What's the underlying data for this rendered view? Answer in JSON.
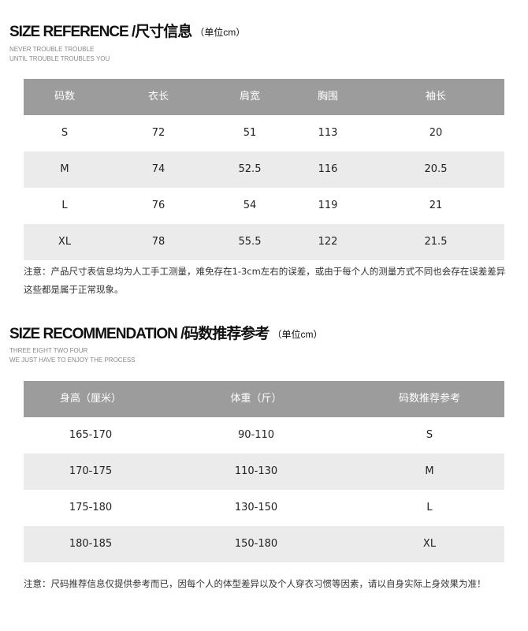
{
  "reference": {
    "title": "SIZE REFERENCE /尺寸信息",
    "unit": "（单位cm）",
    "sub1": "NEVER TROUBLE TROUBLE",
    "sub2": "UNTIL TROUBLE TROUBLES YOU",
    "headers": [
      "码数",
      "衣长",
      "肩宽",
      "胸围",
      "袖长"
    ],
    "rows": [
      [
        "S",
        "72",
        "51",
        "113",
        "20"
      ],
      [
        "M",
        "74",
        "52.5",
        "116",
        "20.5"
      ],
      [
        "L",
        "76",
        "54",
        "119",
        "21"
      ],
      [
        "XL",
        "78",
        "55.5",
        "122",
        "21.5"
      ]
    ],
    "note": "注意：产品尺寸表信息均为人工手工测量，难免存在1-3cm左右的误差，或由于每个人的测量方式不同也会存在误差差异这些都是属于正常现象。"
  },
  "recommendation": {
    "title": "SIZE RECOMMENDATION /码数推荐参考",
    "unit": "（单位cm）",
    "sub1": "THREE EIGHT TWO FOUR",
    "sub2": "WE JUST HAVE TO ENJOY THE PROCESS",
    "headers": [
      "身高（厘米）",
      "体重（斤）",
      "码数推荐参考"
    ],
    "rows": [
      [
        "165-170",
        "90-110",
        "S"
      ],
      [
        "170-175",
        "110-130",
        "M"
      ],
      [
        "175-180",
        "130-150",
        "L"
      ],
      [
        "180-185",
        "150-180",
        "XL"
      ]
    ],
    "note": "注意：尺码推荐信息仅提供参考而已，因每个人的体型差异以及个人穿衣习惯等因素，请以自身实际上身效果为准！"
  }
}
